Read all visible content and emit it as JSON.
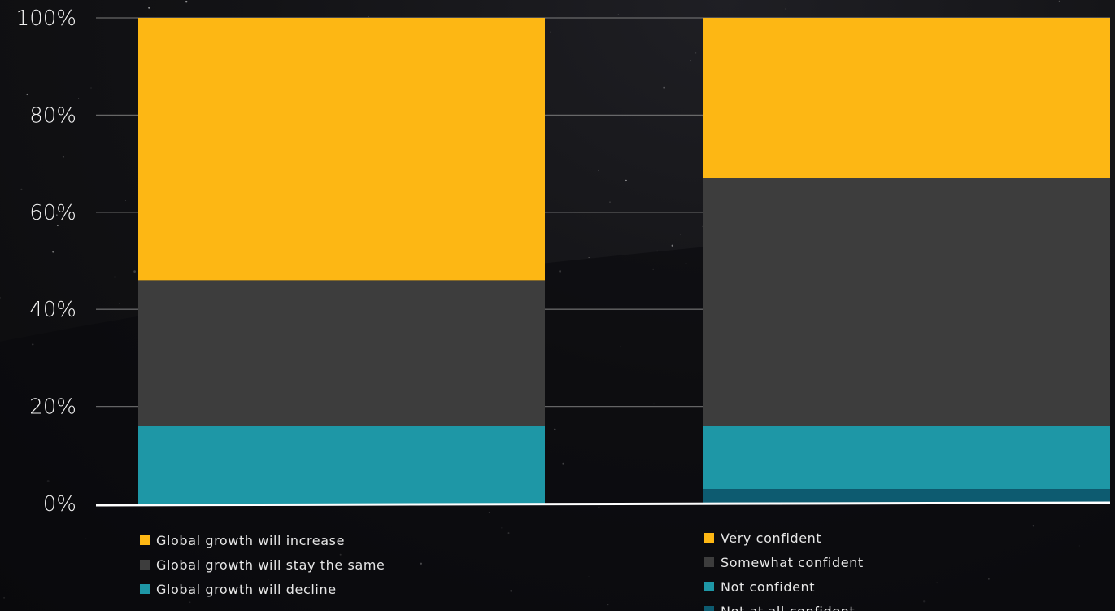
{
  "chart_data": {
    "type": "bar",
    "stacked": true,
    "normalized": true,
    "ylim": [
      0,
      100
    ],
    "yticks": [
      "0%",
      "20%",
      "40%",
      "60%",
      "80%",
      "100%"
    ],
    "grid": true,
    "bars": [
      {
        "segments": [
          {
            "name": "Global growth will decline",
            "value": 16,
            "color": "#1e97a6"
          },
          {
            "name": "Global growth will stay the same",
            "value": 30,
            "color": "#3d3d3d"
          },
          {
            "name": "Global growth will increase",
            "value": 54,
            "color": "#fdb714"
          }
        ]
      },
      {
        "segments": [
          {
            "name": "Not at all confident",
            "value": 3,
            "color": "#0d5b70"
          },
          {
            "name": "Not confident",
            "value": 13,
            "color": "#1e97a6"
          },
          {
            "name": "Somewhat confident",
            "value": 51,
            "color": "#3d3d3d"
          },
          {
            "name": "Very confident",
            "value": 33,
            "color": "#fdb714"
          }
        ]
      }
    ],
    "legends": [
      {
        "placement": "below-left",
        "entries": [
          {
            "label": "Global growth will increase",
            "color": "#fdb714"
          },
          {
            "label": "Global growth will stay the same",
            "color": "#3d3d3d"
          },
          {
            "label": "Global growth will decline",
            "color": "#1e97a6"
          }
        ]
      },
      {
        "placement": "below-right",
        "entries": [
          {
            "label": "Very confident",
            "color": "#fdb714"
          },
          {
            "label": "Somewhat confident",
            "color": "#3d3d3d"
          },
          {
            "label": "Not confident",
            "color": "#1e97a6"
          },
          {
            "label": "Not at all confident",
            "color": "#0d5b70"
          }
        ]
      }
    ]
  }
}
